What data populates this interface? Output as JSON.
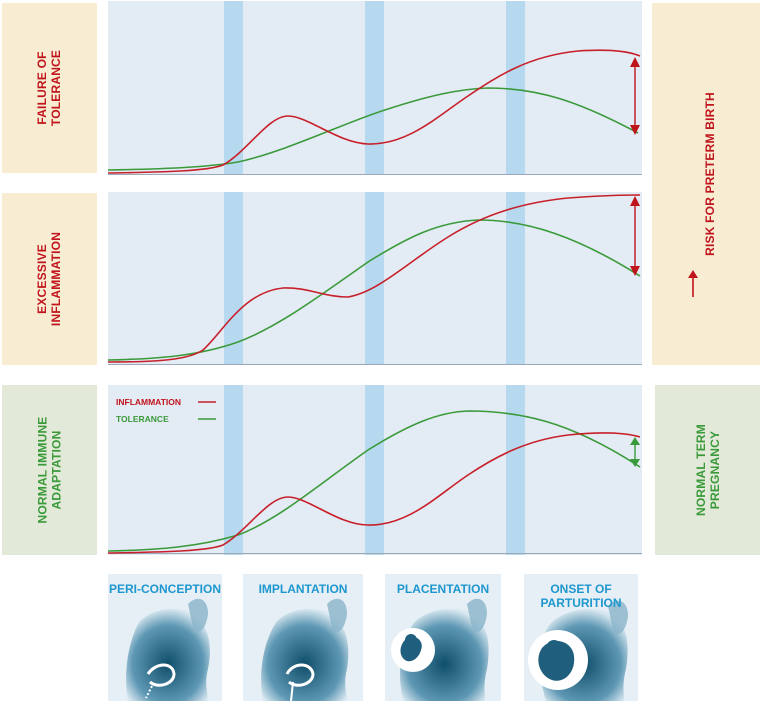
{
  "rows": [
    {
      "label": "FAILURE OF\nTOLERANCE",
      "label_color": "#c0141d"
    },
    {
      "label": "EXCESSIVE\nINFLAMMATION",
      "label_color": "#c0141d"
    },
    {
      "label": "NORMAL IMMUNE\nADAPTATION",
      "label_color": "#3a9a3a"
    }
  ],
  "right": {
    "risk_label": "RISK FOR PRETERM BIRTH",
    "normal_label": "NORMAL TERM\nPREGNANCY"
  },
  "legend": {
    "inflammation": "INFLAMMATION",
    "tolerance": "TOLERANCE"
  },
  "stages": [
    {
      "label": "PERI-CONCEPTION",
      "icon": "pelvis-sperm-icon"
    },
    {
      "label": "IMPLANTATION",
      "icon": "pelvis-embryo-icon"
    },
    {
      "label": "PLACENTATION",
      "icon": "fetus-icon"
    },
    {
      "label": "ONSET OF\nPARTURITION",
      "icon": "fetus-term-icon"
    }
  ],
  "colors": {
    "inflammation": "#c8202a",
    "tolerance": "#3a9a3a",
    "panel_bg": "#e3ebf4",
    "stage_band": "#b6d9ef",
    "risk_bg": "#f8ecd2",
    "normal_bg": "#e2e9d8"
  }
}
